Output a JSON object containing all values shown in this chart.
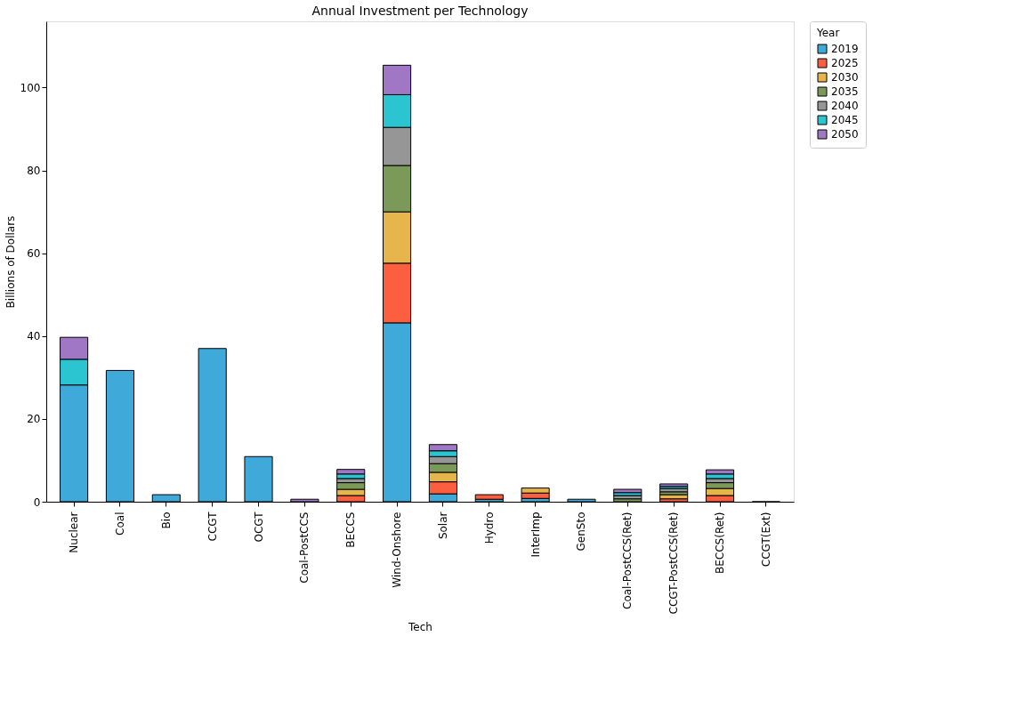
{
  "chart_data": {
    "type": "bar",
    "title": "Annual Investment per Technology",
    "xlabel": "Tech",
    "ylabel": "Billions of Dollars",
    "legend_title": "Year",
    "legend": "top right",
    "stacked": true,
    "grid": false,
    "categories": [
      "Nuclear",
      "Coal",
      "Bio",
      "CCGT",
      "OCGT",
      "Coal-PostCCS",
      "BECCS",
      "Wind-Onshore",
      "Solar",
      "Hydro",
      "InterImp",
      "GenSto",
      "Coal-PostCCS(Ret)",
      "CCGT-PostCCS(Ret)",
      "BECCS(Ret)",
      "CCGT(Ext)"
    ],
    "ylim": [
      0,
      116
    ],
    "yticks": [
      0,
      20,
      40,
      60,
      80,
      100
    ],
    "series": [
      {
        "name": "2019",
        "color": "#3fa9d9",
        "values": [
          28.2,
          31.7,
          1.7,
          37.0,
          10.9,
          null,
          null,
          43.2,
          1.9,
          0.6,
          0.8,
          0.6,
          null,
          null,
          null,
          0
        ]
      },
      {
        "name": "2025",
        "color": "#fc5f3f",
        "values": [
          null,
          null,
          null,
          null,
          null,
          null,
          1.5,
          14.4,
          2.9,
          1.1,
          1.3,
          null,
          null,
          0.7,
          1.5,
          null
        ]
      },
      {
        "name": "2030",
        "color": "#e6b54c",
        "values": [
          null,
          null,
          null,
          null,
          null,
          null,
          1.5,
          12.4,
          2.3,
          null,
          1.2,
          null,
          null,
          1.0,
          1.7,
          null
        ]
      },
      {
        "name": "2035",
        "color": "#7b9a5a",
        "values": [
          null,
          null,
          null,
          null,
          null,
          null,
          1.6,
          11.2,
          2.1,
          null,
          null,
          null,
          0.7,
          0.7,
          1.4,
          null
        ]
      },
      {
        "name": "2040",
        "color": "#969696",
        "values": [
          null,
          null,
          null,
          null,
          null,
          null,
          1.0,
          9.2,
          1.7,
          null,
          null,
          null,
          0.8,
          0.8,
          1.0,
          null
        ]
      },
      {
        "name": "2045",
        "color": "#2bc4d1",
        "values": [
          6.2,
          null,
          null,
          null,
          null,
          null,
          1.1,
          7.9,
          1.4,
          null,
          null,
          null,
          0.7,
          0.5,
          1.1,
          null
        ]
      },
      {
        "name": "2050",
        "color": "#a077c4",
        "values": [
          5.3,
          null,
          null,
          null,
          null,
          0.6,
          1.1,
          7.1,
          1.5,
          null,
          null,
          null,
          0.8,
          0.6,
          1.0,
          null
        ]
      }
    ]
  }
}
